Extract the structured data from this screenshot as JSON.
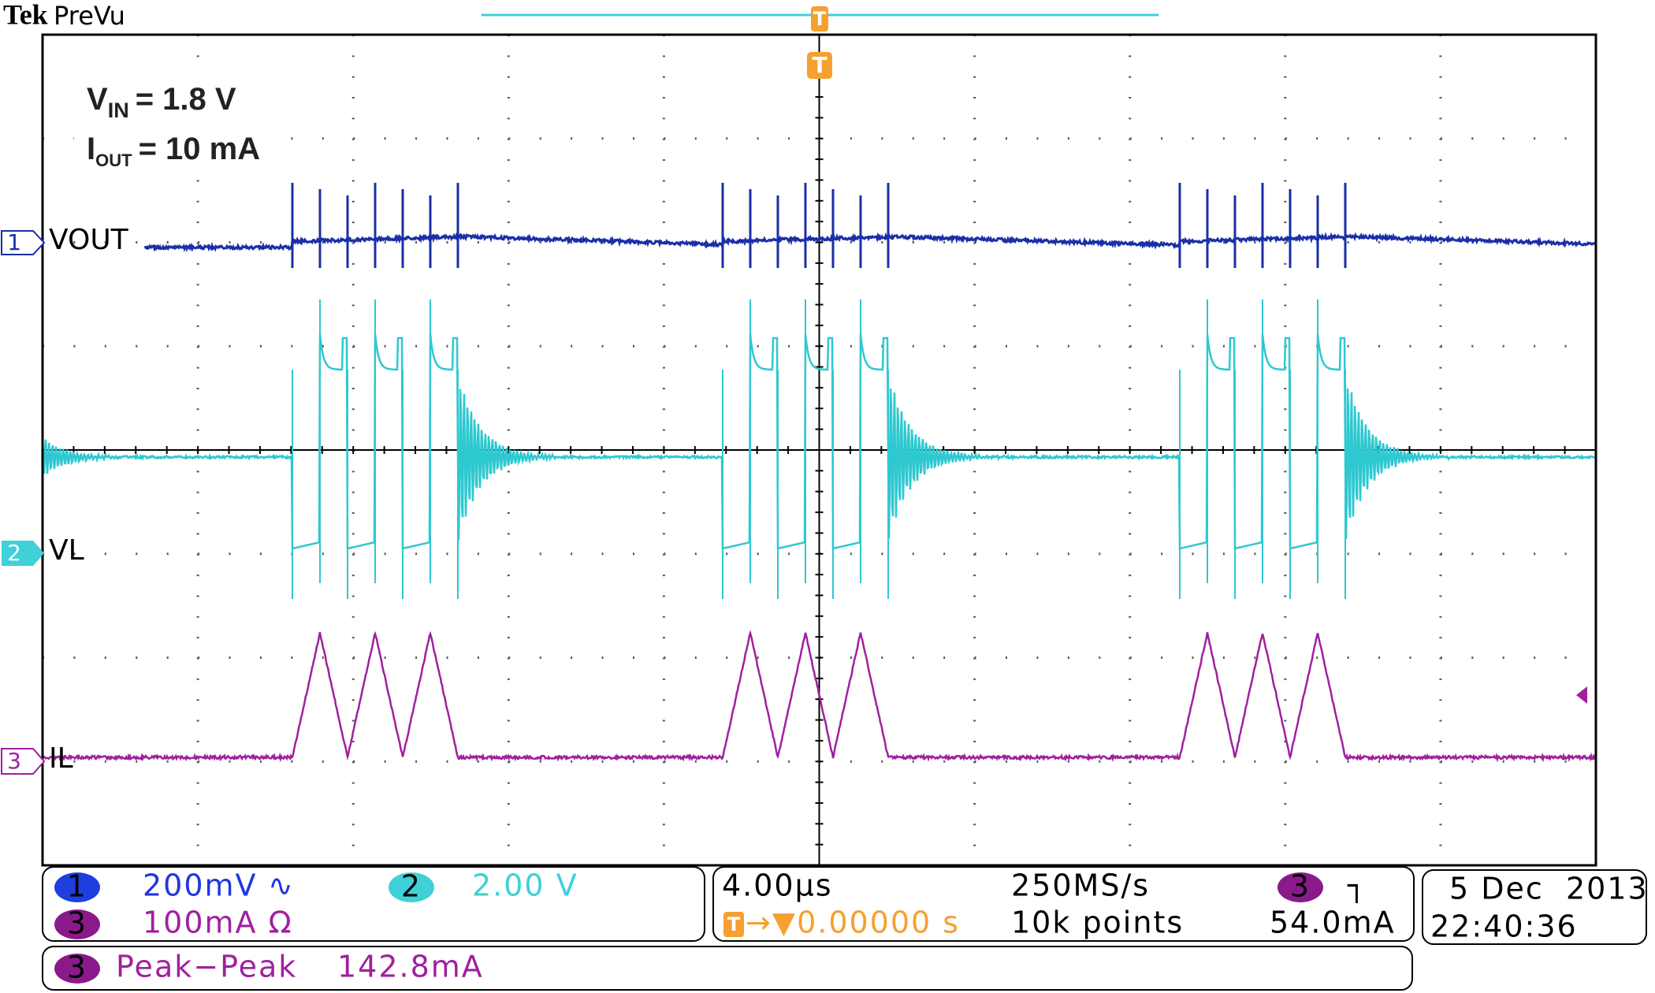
{
  "header": {
    "brand": "Tek",
    "mode": "PreVu"
  },
  "annotation": {
    "vin_symbol": "V",
    "vin_sub": "IN",
    "vin_value": "= 1.8 V",
    "iout_symbol": "I",
    "iout_sub": "OUT",
    "iout_value": "= 10 mA"
  },
  "trigger_marker": "T",
  "channels": [
    {
      "number": "1",
      "label": "VOUT"
    },
    {
      "number": "2",
      "label": "VL"
    },
    {
      "number": "3",
      "label": "IL"
    }
  ],
  "readout": {
    "ch1": {
      "number": "1",
      "scale": "200mV",
      "coupling": "∿"
    },
    "ch2": {
      "number": "2",
      "scale": "2.00 V"
    },
    "ch3": {
      "number": "3",
      "scale": "100mA Ω"
    },
    "timebase": "4.00µs",
    "trigger_icon": "T",
    "trigger_position": "→▼0.00000 s",
    "sample_rate": "250MS/s",
    "record_length": "10k points",
    "trigger_source": "3",
    "trigger_slope": "┐",
    "trigger_level": "54.0mA",
    "date": "5 Dec  2013",
    "time": "22:40:36",
    "measurement": {
      "source": "3",
      "name": "Peak−Peak",
      "value": "142.8mA"
    }
  }
}
